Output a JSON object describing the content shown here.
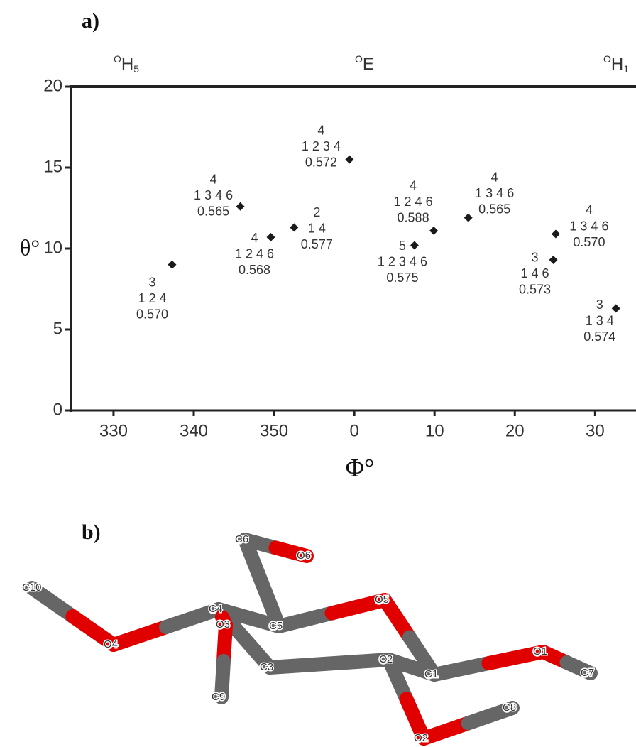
{
  "chart_data": {
    "type": "scatter",
    "panel_label": "a)",
    "x_label": "Φ°",
    "y_label": "θ°",
    "conformers": [
      {
        "sup": "O",
        "base": "H",
        "sub": "5"
      },
      {
        "sup": "O",
        "base": "E",
        "sub": ""
      },
      {
        "sup": "O",
        "base": "H",
        "sub": "1"
      }
    ],
    "x": [
      337.3,
      345.8,
      349.6,
      352.5,
      359.4,
      367.5,
      369.9,
      374.2,
      385.1,
      384.8,
      392.6
    ],
    "y": [
      9.0,
      12.6,
      10.7,
      11.3,
      15.5,
      10.2,
      11.1,
      11.9,
      10.9,
      9.3,
      6.3
    ],
    "point_labels": [
      [
        "3",
        "1 2 4",
        "0.570"
      ],
      [
        "4",
        "1 3 4 6",
        "0.565"
      ],
      [
        "4",
        "1 2 4 6",
        "0.568"
      ],
      [
        "2",
        "1 4",
        "0.577"
      ],
      [
        "4",
        "1 2 3 4",
        "0.572"
      ],
      [
        "5",
        "1 2 3 4 6",
        "0.575"
      ],
      [
        "4",
        "1 2 4 6",
        "0.588"
      ],
      [
        "4",
        "1 3 4 6",
        "0.565"
      ],
      [
        "4",
        "1 3 4 6",
        "0.570"
      ],
      [
        "3",
        "1 4 6",
        "0.573"
      ],
      [
        "3",
        "1 3 4",
        "0.574"
      ]
    ],
    "color": "#1a1a1a",
    "xlim": [
      324.7,
      395.1
    ],
    "xticks": [
      330,
      340,
      350,
      {
        "value": 360,
        "label": "0"
      },
      {
        "value": 370,
        "label": "10"
      },
      {
        "value": 380,
        "label": "20"
      },
      {
        "value": 390,
        "label": "30"
      }
    ],
    "ylim": [
      0,
      20
    ],
    "yticks": [
      0,
      5,
      10,
      15,
      20
    ]
  },
  "molecule": {
    "panel_label": "b)",
    "atoms": [
      "C10",
      "O4",
      "C4",
      "O3",
      "C5",
      "C6",
      "O6",
      "O5",
      "C1",
      "C2",
      "C3",
      "C9",
      "O1",
      "C7",
      "O2",
      "C8"
    ]
  }
}
